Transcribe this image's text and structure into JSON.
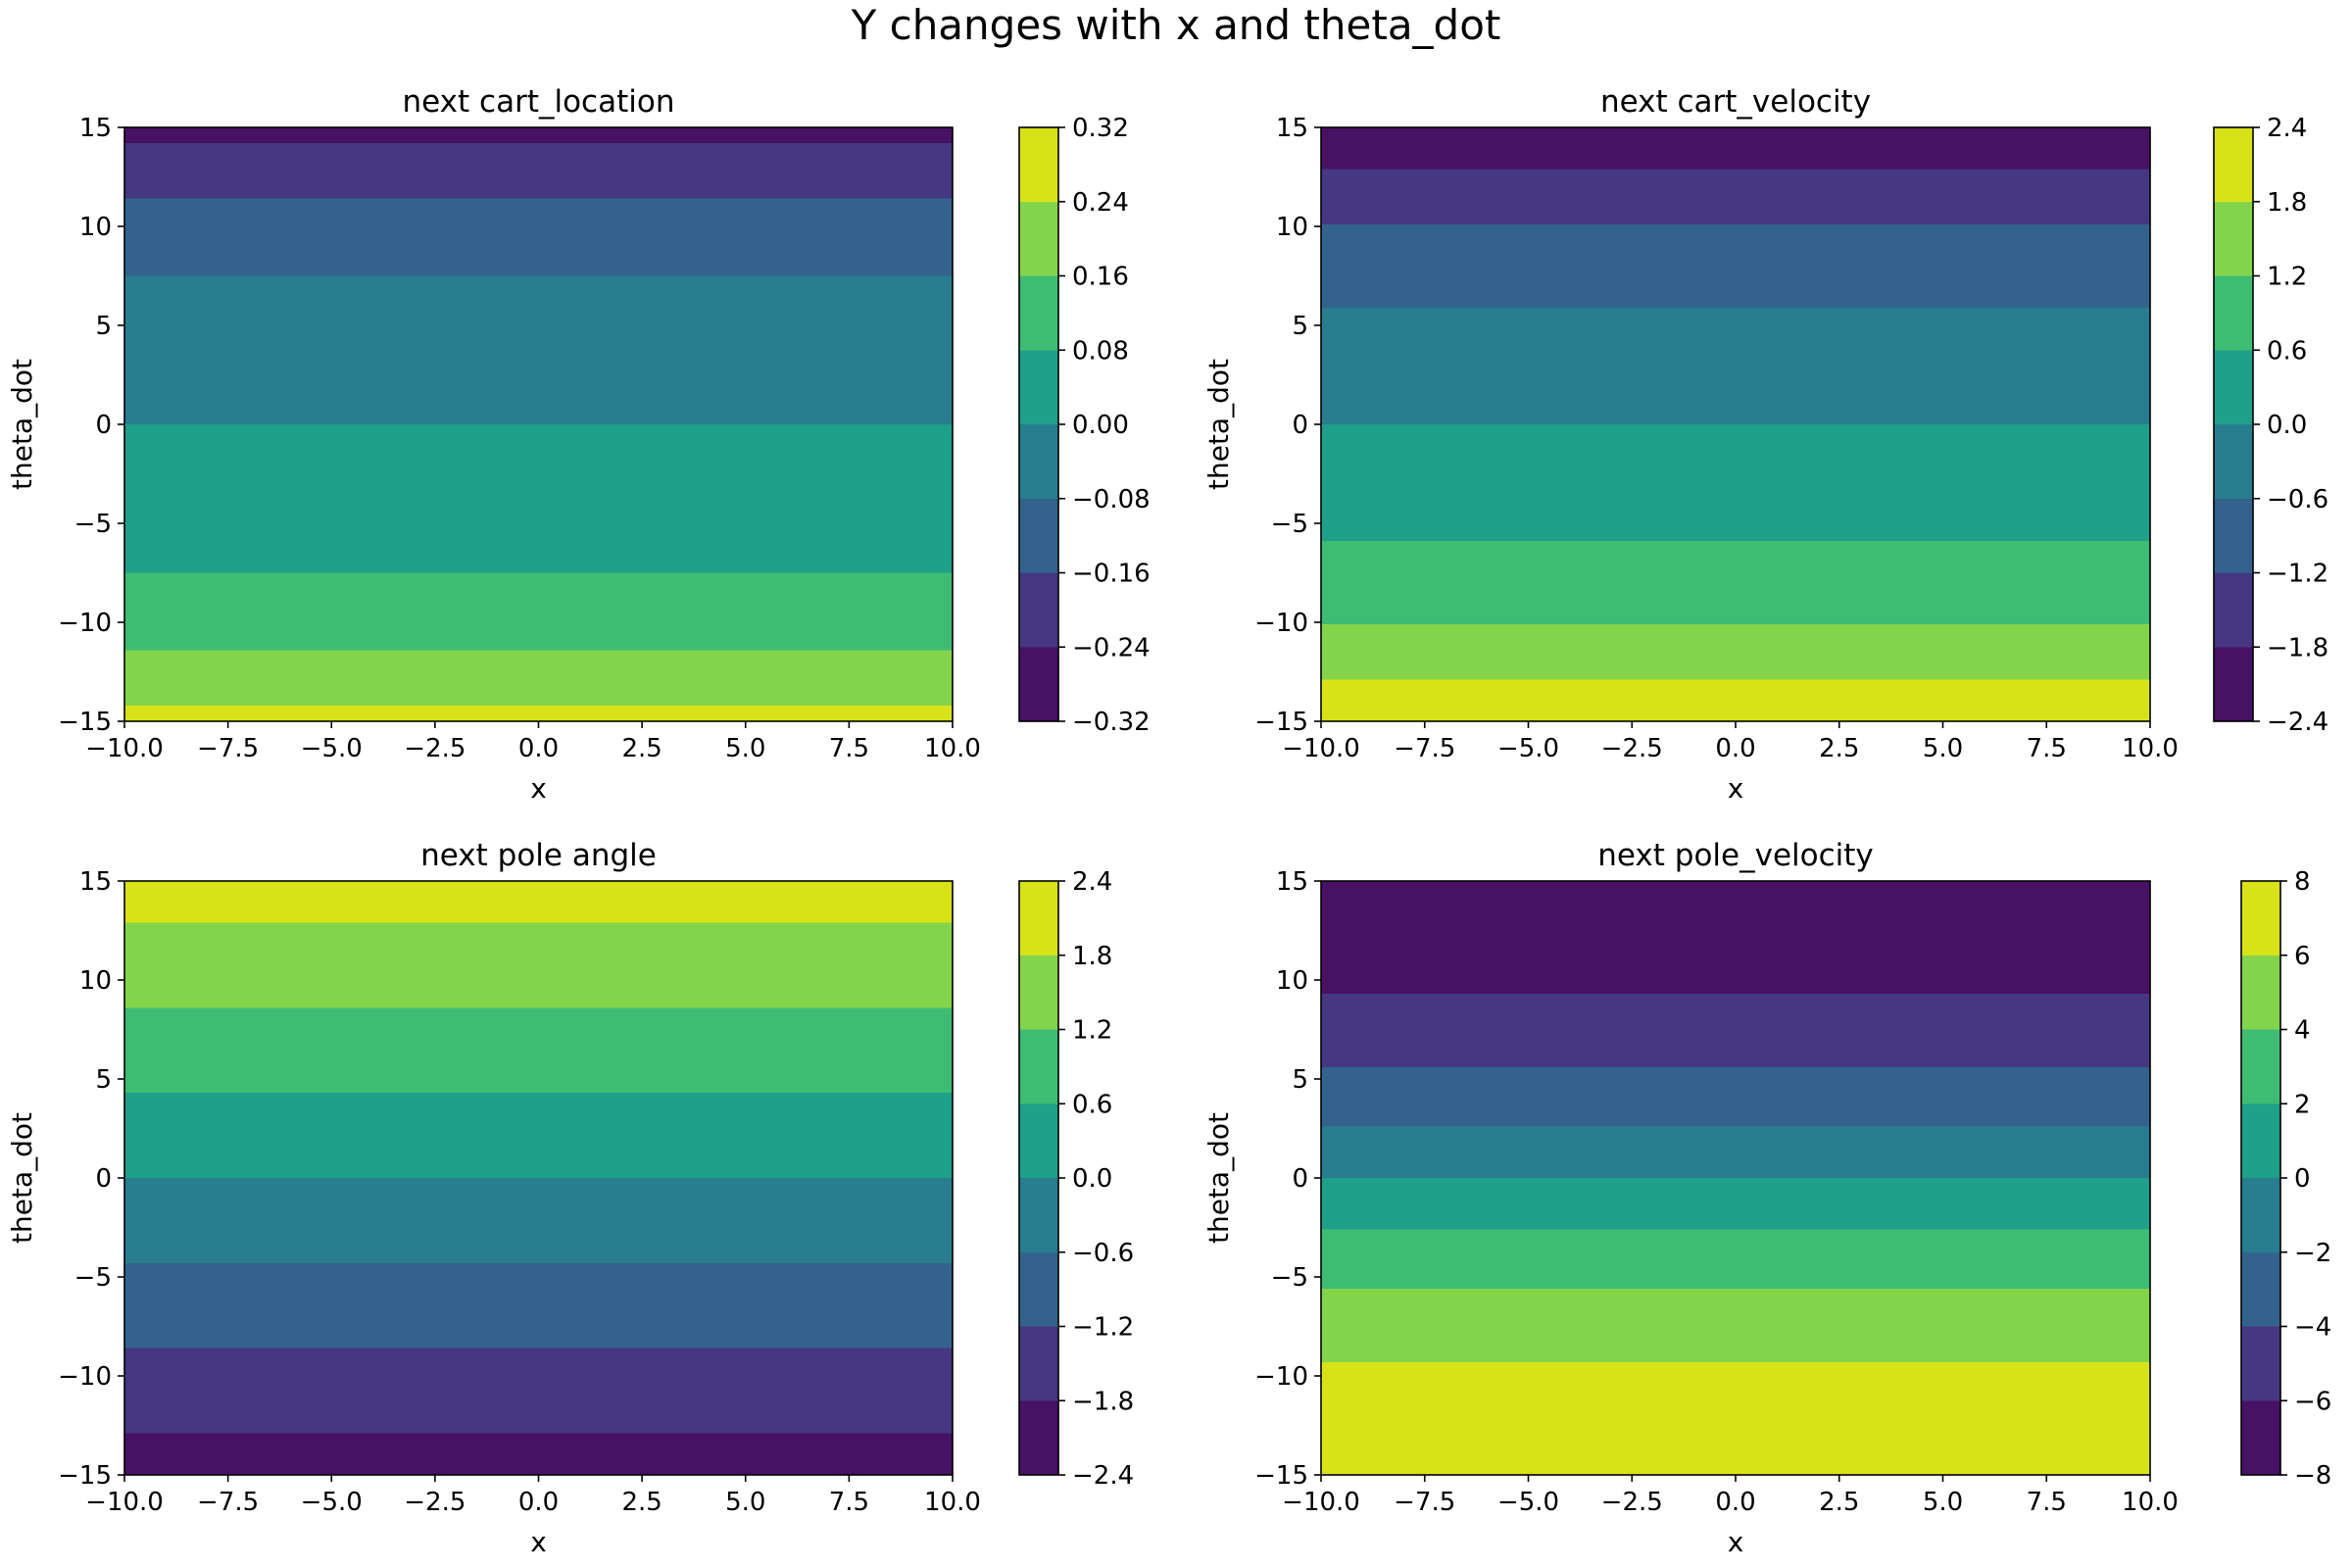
{
  "figure": {
    "title": "Y changes with x and theta_dot"
  },
  "colormap": [
    "#440154",
    "#482878",
    "#3e4a89",
    "#31688e",
    "#26828e",
    "#1f9e89",
    "#35b779",
    "#6ece58",
    "#b5de2b",
    "#fde725"
  ],
  "chart_data": [
    {
      "type": "heatmap",
      "title": "next cart_location",
      "xlabel": "x",
      "ylabel": "theta_dot",
      "xlim": [
        -10,
        10
      ],
      "ylim": [
        -15,
        15
      ],
      "xticks": [
        "−10.0",
        "−7.5",
        "−5.0",
        "−2.5",
        "0.0",
        "2.5",
        "5.0",
        "7.5",
        "10.0"
      ],
      "yticks": [
        "−15",
        "−10",
        "−5",
        "0",
        "5",
        "10",
        "15"
      ],
      "colorbar": {
        "levels": [
          -0.32,
          -0.24,
          -0.16,
          -0.08,
          0.0,
          0.08,
          0.16,
          0.24,
          0.32
        ],
        "tick_labels": [
          "−0.32",
          "−0.24",
          "−0.16",
          "−0.08",
          "0.00",
          "0.08",
          "0.16",
          "0.24",
          "0.32"
        ],
        "colors": [
          "#471164",
          "#453781",
          "#33638d",
          "#287d8e",
          "#1fa088",
          "#3fbc73",
          "#84d44b",
          "#d8e219"
        ]
      },
      "bands": [
        {
          "y0": -15.0,
          "y1": -14.2,
          "level": 7
        },
        {
          "y0": -14.2,
          "y1": -11.4,
          "level": 6
        },
        {
          "y0": -11.4,
          "y1": -7.5,
          "level": 5
        },
        {
          "y0": -7.5,
          "y1": 0.0,
          "level": 4
        },
        {
          "y0": 0.0,
          "y1": 7.5,
          "level": 3
        },
        {
          "y0": 7.5,
          "y1": 11.4,
          "level": 2
        },
        {
          "y0": 11.4,
          "y1": 14.2,
          "level": 1
        },
        {
          "y0": 14.2,
          "y1": 15.0,
          "level": 0
        }
      ]
    },
    {
      "type": "heatmap",
      "title": "next cart_velocity",
      "xlabel": "x",
      "ylabel": "theta_dot",
      "xlim": [
        -10,
        10
      ],
      "ylim": [
        -15,
        15
      ],
      "xticks": [
        "−10.0",
        "−7.5",
        "−5.0",
        "−2.5",
        "0.0",
        "2.5",
        "5.0",
        "7.5",
        "10.0"
      ],
      "yticks": [
        "−15",
        "−10",
        "−5",
        "0",
        "5",
        "10",
        "15"
      ],
      "colorbar": {
        "levels": [
          -2.4,
          -1.8,
          -1.2,
          -0.6,
          0.0,
          0.6,
          1.2,
          1.8,
          2.4
        ],
        "tick_labels": [
          "−2.4",
          "−1.8",
          "−1.2",
          "−0.6",
          "0.0",
          "0.6",
          "1.2",
          "1.8",
          "2.4"
        ],
        "colors": [
          "#471164",
          "#453781",
          "#33638d",
          "#287d8e",
          "#1fa088",
          "#3fbc73",
          "#84d44b",
          "#d8e219"
        ]
      },
      "bands": [
        {
          "y0": -15.0,
          "y1": -12.9,
          "level": 7
        },
        {
          "y0": -12.9,
          "y1": -10.1,
          "level": 6
        },
        {
          "y0": -10.1,
          "y1": -5.9,
          "level": 5
        },
        {
          "y0": -5.9,
          "y1": 0.0,
          "level": 4
        },
        {
          "y0": 0.0,
          "y1": 5.9,
          "level": 3
        },
        {
          "y0": 5.9,
          "y1": 10.1,
          "level": 2
        },
        {
          "y0": 10.1,
          "y1": 12.9,
          "level": 1
        },
        {
          "y0": 12.9,
          "y1": 15.0,
          "level": 0
        }
      ]
    },
    {
      "type": "heatmap",
      "title": "next pole angle",
      "xlabel": "x",
      "ylabel": "theta_dot",
      "xlim": [
        -10,
        10
      ],
      "ylim": [
        -15,
        15
      ],
      "xticks": [
        "−10.0",
        "−7.5",
        "−5.0",
        "−2.5",
        "0.0",
        "2.5",
        "5.0",
        "7.5",
        "10.0"
      ],
      "yticks": [
        "−15",
        "−10",
        "−5",
        "0",
        "5",
        "10",
        "15"
      ],
      "colorbar": {
        "levels": [
          -2.4,
          -1.8,
          -1.2,
          -0.6,
          0.0,
          0.6,
          1.2,
          1.8,
          2.4
        ],
        "tick_labels": [
          "−2.4",
          "−1.8",
          "−1.2",
          "−0.6",
          "0.0",
          "0.6",
          "1.2",
          "1.8",
          "2.4"
        ],
        "colors": [
          "#471164",
          "#453781",
          "#33638d",
          "#287d8e",
          "#1fa088",
          "#3fbc73",
          "#84d44b",
          "#d8e219"
        ]
      },
      "bands": [
        {
          "y0": -15.0,
          "y1": -12.9,
          "level": 0
        },
        {
          "y0": -12.9,
          "y1": -8.6,
          "level": 1
        },
        {
          "y0": -8.6,
          "y1": -4.3,
          "level": 2
        },
        {
          "y0": -4.3,
          "y1": 0.0,
          "level": 3
        },
        {
          "y0": 0.0,
          "y1": 4.3,
          "level": 4
        },
        {
          "y0": 4.3,
          "y1": 8.6,
          "level": 5
        },
        {
          "y0": 8.6,
          "y1": 12.9,
          "level": 6
        },
        {
          "y0": 12.9,
          "y1": 15.0,
          "level": 7
        }
      ]
    },
    {
      "type": "heatmap",
      "title": "next pole_velocity",
      "xlabel": "x",
      "ylabel": "theta_dot",
      "xlim": [
        -10,
        10
      ],
      "ylim": [
        -15,
        15
      ],
      "xticks": [
        "−10.0",
        "−7.5",
        "−5.0",
        "−2.5",
        "0.0",
        "2.5",
        "5.0",
        "7.5",
        "10.0"
      ],
      "yticks": [
        "−15",
        "−10",
        "−5",
        "0",
        "5",
        "10",
        "15"
      ],
      "colorbar": {
        "levels": [
          -8,
          -6,
          -4,
          -2,
          0,
          2,
          4,
          6,
          8
        ],
        "tick_labels": [
          "−8",
          "−6",
          "−4",
          "−2",
          "0",
          "2",
          "4",
          "6",
          "8"
        ],
        "colors": [
          "#471164",
          "#453781",
          "#33638d",
          "#287d8e",
          "#1fa088",
          "#3fbc73",
          "#84d44b",
          "#d8e219"
        ]
      },
      "bands": [
        {
          "y0": -15.0,
          "y1": -9.3,
          "level": 7
        },
        {
          "y0": -9.3,
          "y1": -5.6,
          "level": 6
        },
        {
          "y0": -5.6,
          "y1": -2.6,
          "level": 5
        },
        {
          "y0": -2.6,
          "y1": 0.0,
          "level": 4
        },
        {
          "y0": 0.0,
          "y1": 2.6,
          "level": 3
        },
        {
          "y0": 2.6,
          "y1": 5.6,
          "level": 2
        },
        {
          "y0": 5.6,
          "y1": 9.3,
          "level": 1
        },
        {
          "y0": 9.3,
          "y1": 15.0,
          "level": 0
        }
      ]
    }
  ]
}
